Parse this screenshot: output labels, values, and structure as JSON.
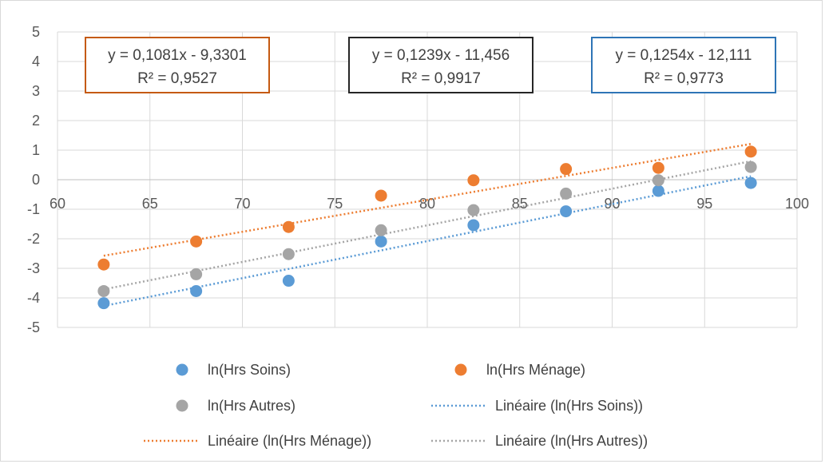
{
  "chart_data": {
    "type": "scatter",
    "xlim": [
      60,
      100
    ],
    "ylim": [
      -5,
      5
    ],
    "x_ticks": [
      60,
      65,
      70,
      75,
      80,
      85,
      90,
      95,
      100
    ],
    "y_ticks": [
      5,
      4,
      3,
      2,
      1,
      0,
      -1,
      -2,
      -3,
      -4,
      -5
    ],
    "grid": true,
    "legend_position": "bottom",
    "series": [
      {
        "name": "ln(Hrs Soins)",
        "color": "#5b9bd5",
        "x": [
          62.5,
          67.5,
          72.5,
          77.5,
          82.5,
          87.5,
          92.5,
          97.5
        ],
        "y": [
          -4.18,
          -3.77,
          -3.42,
          -2.09,
          -1.54,
          -1.07,
          -0.38,
          -0.11
        ],
        "trend": {
          "label": "Linéaire (ln(Hrs Soins))",
          "slope": 0.1254,
          "intercept": -12.111,
          "equation": "y = 0,1254x - 12,111",
          "r2": "R² = 0,9773",
          "box_color": "#2e75b6"
        }
      },
      {
        "name": "ln(Hrs Ménage)",
        "color": "#ed7d31",
        "x": [
          62.5,
          67.5,
          72.5,
          77.5,
          82.5,
          87.5,
          92.5,
          97.5
        ],
        "y": [
          -2.87,
          -2.09,
          -1.6,
          -0.54,
          -0.02,
          0.36,
          0.4,
          0.95
        ],
        "trend": {
          "label": "Linéaire (ln(Hrs Ménage))",
          "slope": 0.1081,
          "intercept": -9.3301,
          "equation": "y = 0,1081x - 9,3301",
          "r2": "R² = 0,9527",
          "box_color": "#c55a11"
        }
      },
      {
        "name": "ln(Hrs Autres)",
        "color": "#a5a5a5",
        "x": [
          62.5,
          67.5,
          72.5,
          77.5,
          82.5,
          87.5,
          92.5,
          97.5
        ],
        "y": [
          -3.77,
          -3.2,
          -2.52,
          -1.71,
          -1.03,
          -0.47,
          -0.02,
          0.43
        ],
        "trend": {
          "label": "Linéaire (ln(Hrs Autres))",
          "slope": 0.1239,
          "intercept": -11.456,
          "equation": "y = 0,1239x - 11,456",
          "r2": "R² = 0,9917",
          "box_color": "#262626"
        }
      }
    ],
    "equation_box_order": [
      1,
      2,
      0
    ],
    "legend_entries": [
      {
        "kind": "marker",
        "series": 0,
        "label": "ln(Hrs Soins)"
      },
      {
        "kind": "marker",
        "series": 1,
        "label": "ln(Hrs Ménage)"
      },
      {
        "kind": "marker",
        "series": 2,
        "label": "ln(Hrs Autres)"
      },
      {
        "kind": "line",
        "series": 0,
        "label": "Linéaire (ln(Hrs Soins))"
      },
      {
        "kind": "line",
        "series": 1,
        "label": "Linéaire (ln(Hrs Ménage))"
      },
      {
        "kind": "line",
        "series": 2,
        "label": "Linéaire (ln(Hrs Autres))"
      }
    ]
  }
}
